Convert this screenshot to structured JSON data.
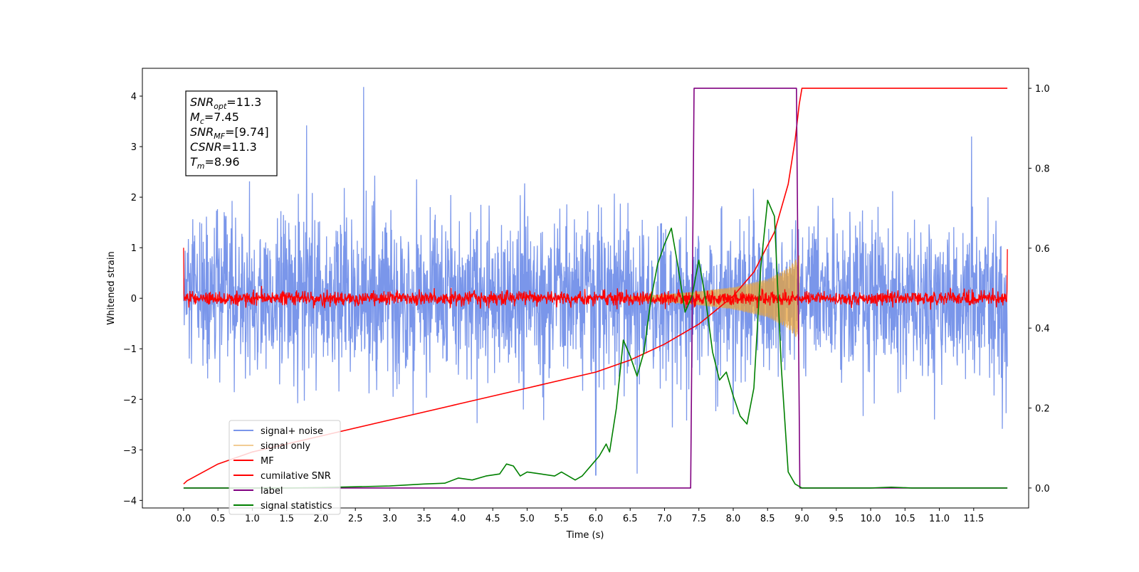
{
  "chart_data": {
    "type": "line",
    "xlabel": "Time (s)",
    "ylabel": "Whitened strain",
    "ylabel_right": "",
    "xlim": [
      -0.6,
      12.3
    ],
    "ylim": [
      -4.15,
      4.55
    ],
    "ylim_right": [
      -0.05,
      1.05
    ],
    "x_ticks": [
      0.0,
      0.5,
      1.0,
      1.5,
      2.0,
      2.5,
      3.0,
      3.5,
      4.0,
      4.5,
      5.0,
      5.5,
      6.0,
      6.5,
      7.0,
      7.5,
      8.0,
      8.5,
      9.0,
      9.5,
      10.0,
      10.5,
      11.0,
      11.5
    ],
    "x_tick_labels": [
      "0.0",
      "0.5",
      "1.0",
      "1.5",
      "2.0",
      "2.5",
      "3.0",
      "3.5",
      "4.0",
      "4.5",
      "5.0",
      "5.5",
      "6.0",
      "6.5",
      "7.0",
      "7.5",
      "8.0",
      "8.5",
      "9.0",
      "9.5",
      "10.0",
      "10.5",
      "11.0",
      "11.5"
    ],
    "y_ticks": [
      4,
      3,
      2,
      1,
      0,
      -1,
      -2,
      -3,
      -4
    ],
    "y_tick_labels": [
      "4",
      "3",
      "2",
      "1",
      "0",
      "−1",
      "−2",
      "−3",
      "−4"
    ],
    "y_right_ticks": [
      1.0,
      0.8,
      0.6,
      0.4,
      0.2,
      0.0
    ],
    "y_right_tick_labels": [
      "1.0",
      "0.8",
      "0.6",
      "0.4",
      "0.2",
      "0.0"
    ],
    "grid": false,
    "legend_position": "lower-left",
    "annotation_lines": [
      {
        "main": "SNR",
        "sub": "opt",
        "value": "=11.3"
      },
      {
        "main": "M",
        "sub": "c",
        "value": "=7.45"
      },
      {
        "main": "SNR",
        "sub": "MF",
        "value": "=[9.74]"
      },
      {
        "main": "CSNR",
        "sub": "",
        "value": "=11.3"
      },
      {
        "main": "T",
        "sub": "m",
        "value": "=8.96"
      }
    ],
    "series": [
      {
        "name": "signal+ noise",
        "color": "#4169e1",
        "axis": "left",
        "kind": "noise",
        "x_range": [
          0.0,
          11.99
        ],
        "approx_std": 0.8,
        "peak_values": [
          [
            2.62,
            4.18
          ],
          [
            1.79,
            3.42
          ],
          [
            6.0,
            -3.5
          ],
          [
            6.6,
            -3.47
          ],
          [
            11.47,
            3.2
          ]
        ]
      },
      {
        "name": "signal only",
        "color": "#e8a33c",
        "axis": "left",
        "kind": "chirp",
        "x": [
          6.5,
          7.0,
          7.5,
          8.0,
          8.5,
          8.8,
          8.96
        ],
        "envelope": [
          0.03,
          0.08,
          0.14,
          0.22,
          0.38,
          0.6,
          0.85
        ]
      },
      {
        "name": "MF",
        "color": "#ff0000",
        "axis": "left",
        "kind": "noise",
        "x_range": [
          0.0,
          11.99
        ],
        "approx_std": 0.07,
        "endpoints": [
          [
            0.0,
            1.0
          ],
          [
            11.99,
            0.97
          ]
        ]
      },
      {
        "name": "cumilative SNR",
        "color": "#ff0000",
        "axis": "right",
        "kind": "line",
        "x": [
          0.0,
          0.05,
          0.5,
          1.0,
          2.0,
          3.0,
          4.0,
          5.0,
          6.0,
          6.5,
          7.0,
          7.5,
          8.0,
          8.3,
          8.6,
          8.8,
          8.9,
          8.96,
          9.0,
          11.99
        ],
        "values": [
          0.01,
          0.018,
          0.06,
          0.09,
          0.13,
          0.17,
          0.21,
          0.25,
          0.29,
          0.32,
          0.36,
          0.41,
          0.48,
          0.54,
          0.64,
          0.76,
          0.87,
          0.96,
          1.0,
          1.0
        ]
      },
      {
        "name": "label",
        "color": "#800080",
        "axis": "right",
        "kind": "line",
        "x": [
          0.0,
          7.38,
          7.43,
          8.92,
          8.97,
          11.99
        ],
        "values": [
          0.0,
          0.0,
          1.0,
          1.0,
          0.0,
          0.0
        ]
      },
      {
        "name": "signal statistics",
        "color": "#008000",
        "axis": "right",
        "kind": "line",
        "x": [
          0.0,
          0.5,
          1.0,
          1.5,
          2.0,
          2.5,
          3.0,
          3.5,
          3.8,
          4.0,
          4.2,
          4.4,
          4.6,
          4.7,
          4.8,
          4.9,
          5.0,
          5.2,
          5.4,
          5.5,
          5.6,
          5.7,
          5.8,
          5.95,
          6.05,
          6.15,
          6.2,
          6.3,
          6.4,
          6.5,
          6.6,
          6.7,
          6.8,
          6.9,
          7.0,
          7.1,
          7.2,
          7.3,
          7.4,
          7.5,
          7.6,
          7.7,
          7.8,
          7.9,
          8.0,
          8.1,
          8.2,
          8.3,
          8.4,
          8.5,
          8.6,
          8.7,
          8.8,
          8.9,
          9.0,
          9.5,
          10.0,
          10.3,
          10.6,
          11.0,
          11.5,
          11.99
        ],
        "values": [
          0.0,
          0.0,
          0.0,
          0.0,
          0.001,
          0.003,
          0.005,
          0.01,
          0.012,
          0.025,
          0.02,
          0.03,
          0.035,
          0.06,
          0.055,
          0.03,
          0.04,
          0.035,
          0.03,
          0.04,
          0.03,
          0.02,
          0.03,
          0.06,
          0.08,
          0.11,
          0.09,
          0.2,
          0.37,
          0.33,
          0.28,
          0.34,
          0.47,
          0.56,
          0.61,
          0.65,
          0.55,
          0.44,
          0.48,
          0.57,
          0.47,
          0.34,
          0.27,
          0.29,
          0.23,
          0.18,
          0.16,
          0.25,
          0.55,
          0.72,
          0.68,
          0.3,
          0.04,
          0.01,
          0.0,
          0.0,
          0.0,
          0.002,
          0.0,
          0.0,
          0.0,
          0.0
        ]
      }
    ]
  }
}
